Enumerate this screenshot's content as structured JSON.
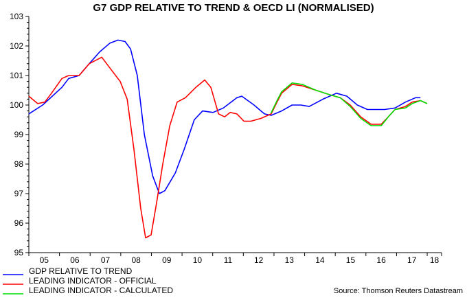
{
  "chart_data": {
    "type": "line",
    "title": "G7 GDP RELATIVE TO TREND & OECD LI (NORMALISED)",
    "xlabel": "",
    "ylabel": "",
    "xlim": [
      2005,
      2018.47
    ],
    "ylim": [
      95,
      103
    ],
    "y_ticks": [
      95,
      96,
      97,
      98,
      99,
      100,
      101,
      102,
      103
    ],
    "x_tick_labels": [
      "05",
      "06",
      "07",
      "08",
      "09",
      "10",
      "11",
      "12",
      "13",
      "14",
      "15",
      "16",
      "17",
      "18"
    ],
    "grid": false,
    "legend_position": "bottom-left",
    "source": "Source: Thomson Reuters Datastream",
    "series": [
      {
        "name": "GDP RELATIVE TO TREND",
        "color": "#0000ff",
        "x": [
          2005.0,
          2005.45,
          2006.08,
          2006.3,
          2006.64,
          2006.97,
          2007.31,
          2007.65,
          2007.91,
          2008.14,
          2008.32,
          2008.54,
          2008.77,
          2009.04,
          2009.26,
          2009.44,
          2009.78,
          2010.07,
          2010.4,
          2010.67,
          2011.01,
          2011.35,
          2011.79,
          2011.95,
          2012.35,
          2012.69,
          2012.91,
          2013.25,
          2013.59,
          2013.88,
          2014.15,
          2014.6,
          2015.04,
          2015.38,
          2015.72,
          2016.05,
          2016.61,
          2016.95,
          2017.29,
          2017.62,
          2017.78
        ],
        "y": [
          99.7,
          100.0,
          100.6,
          100.9,
          101.0,
          101.4,
          101.8,
          102.1,
          102.2,
          102.15,
          101.9,
          101.0,
          99.0,
          97.6,
          97.0,
          97.1,
          97.7,
          98.5,
          99.5,
          99.8,
          99.75,
          99.9,
          100.25,
          100.3,
          100.0,
          99.7,
          99.65,
          99.8,
          100.0,
          100.0,
          99.95,
          100.2,
          100.4,
          100.3,
          100.0,
          99.85,
          99.85,
          99.9,
          100.1,
          100.25,
          100.25
        ]
      },
      {
        "name": "LEADING INDICATOR - OFFICIAL",
        "color": "#ff0000",
        "x": [
          2005.0,
          2005.29,
          2005.52,
          2005.74,
          2006.08,
          2006.3,
          2006.64,
          2006.97,
          2007.38,
          2007.65,
          2007.98,
          2008.21,
          2008.43,
          2008.65,
          2008.81,
          2008.99,
          2009.17,
          2009.37,
          2009.6,
          2009.84,
          2010.11,
          2010.45,
          2010.74,
          2010.94,
          2011.19,
          2011.39,
          2011.57,
          2011.79,
          2012.02,
          2012.24,
          2012.58,
          2012.91,
          2013.1,
          2013.25,
          2013.59,
          2013.92,
          2014.37,
          2014.82,
          2015.16,
          2015.49,
          2015.83,
          2016.17,
          2016.5,
          2016.73,
          2016.95,
          2017.29,
          2017.51,
          2017.78,
          2018.0
        ],
        "y": [
          100.3,
          100.05,
          100.1,
          100.4,
          100.9,
          101.0,
          101.0,
          101.4,
          101.62,
          101.25,
          100.8,
          100.2,
          98.5,
          96.5,
          95.5,
          95.6,
          96.7,
          98.0,
          99.3,
          100.1,
          100.25,
          100.6,
          100.85,
          100.6,
          99.7,
          99.6,
          99.75,
          99.7,
          99.45,
          99.45,
          99.55,
          99.7,
          100.1,
          100.4,
          100.7,
          100.65,
          100.5,
          100.35,
          100.25,
          100.0,
          99.6,
          99.35,
          99.35,
          99.6,
          99.85,
          99.95,
          100.1,
          100.15,
          100.05
        ]
      },
      {
        "name": "LEADING INDICATOR - CALCULATED",
        "color": "#00dd00",
        "x": [
          2012.9,
          2013.1,
          2013.25,
          2013.59,
          2013.92,
          2014.37,
          2014.82,
          2015.16,
          2015.49,
          2015.83,
          2016.17,
          2016.5,
          2016.73,
          2016.95,
          2017.29,
          2017.51,
          2017.78,
          2018.0
        ],
        "y": [
          99.72,
          100.15,
          100.45,
          100.75,
          100.7,
          100.5,
          100.35,
          100.25,
          99.95,
          99.55,
          99.3,
          99.3,
          99.6,
          99.85,
          99.9,
          100.05,
          100.15,
          100.05
        ]
      }
    ]
  }
}
